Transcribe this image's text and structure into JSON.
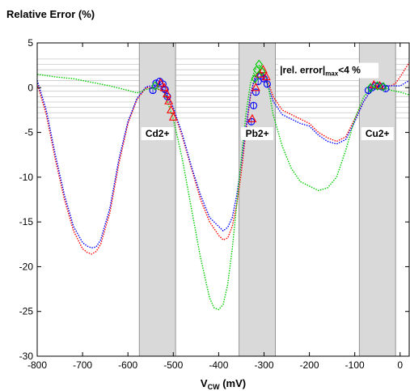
{
  "chart_data": {
    "type": "line",
    "title": "Relative Error (%)",
    "xlabel": "V",
    "xlabel_sub": "CW",
    "xlabel_unit": " (mV)",
    "xlim": [
      -800,
      20
    ],
    "ylim": [
      -30,
      5
    ],
    "xticks": [
      -800,
      -700,
      -600,
      -500,
      -400,
      -300,
      -200,
      -100,
      0
    ],
    "yticks": [
      5,
      0,
      -5,
      -10,
      -15,
      -20,
      -25,
      -30
    ],
    "grid": false,
    "tolerance_band": [
      -3.8,
      3.2
    ],
    "tolerance_label_main": "|rel. error|",
    "tolerance_label_sub": "max",
    "tolerance_label_tail": "<4 %",
    "regions": [
      {
        "label": "Cd2+",
        "x0": -575,
        "x1": -495
      },
      {
        "label": "Pb2+",
        "x0": -355,
        "x1": -275
      },
      {
        "label": "Cu2+",
        "x0": -90,
        "x1": -10
      }
    ],
    "series": [
      {
        "color": "#ff0000",
        "x": [
          -800,
          -780,
          -760,
          -740,
          -720,
          -700,
          -690,
          -680,
          -670,
          -660,
          -640,
          -620,
          -600,
          -580,
          -560,
          -540,
          -520,
          -500,
          -480,
          -460,
          -440,
          -420,
          -400,
          -390,
          -380,
          -370,
          -360,
          -350,
          -340,
          -330,
          -320,
          -310,
          -300,
          -290,
          -280,
          -260,
          -240,
          -220,
          -200,
          -180,
          -160,
          -140,
          -120,
          -100,
          -80,
          -60,
          -40,
          -20,
          -10,
          0,
          10,
          20
        ],
        "y": [
          0.5,
          -3,
          -8,
          -12.5,
          -16,
          -18,
          -18.4,
          -18.6,
          -18.3,
          -17.5,
          -14,
          -8.5,
          -4,
          -1.3,
          0,
          0,
          -0.5,
          -2.5,
          -5.5,
          -9,
          -12.5,
          -15,
          -16.5,
          -17,
          -16.8,
          -15.5,
          -13,
          -9.5,
          -5,
          -1,
          1.2,
          1.8,
          1.5,
          0.5,
          -1,
          -2.5,
          -3,
          -3.5,
          -4,
          -5,
          -5.6,
          -6,
          -5.5,
          -3.5,
          -1.5,
          0,
          0.2,
          0.2,
          0.5,
          1.2,
          2,
          2.8
        ]
      },
      {
        "color": "#0000ff",
        "x": [
          -800,
          -780,
          -760,
          -740,
          -720,
          -700,
          -690,
          -680,
          -670,
          -660,
          -640,
          -620,
          -600,
          -580,
          -560,
          -540,
          -520,
          -500,
          -480,
          -460,
          -440,
          -420,
          -400,
          -390,
          -380,
          -370,
          -360,
          -350,
          -340,
          -330,
          -320,
          -310,
          -300,
          -290,
          -280,
          -260,
          -240,
          -220,
          -200,
          -180,
          -160,
          -140,
          -120,
          -100,
          -80,
          -60,
          -40,
          -20,
          -10,
          0,
          10,
          20
        ],
        "y": [
          0.8,
          -2.5,
          -7.5,
          -12,
          -15.5,
          -17.3,
          -17.7,
          -17.9,
          -17.8,
          -17,
          -13.5,
          -8,
          -3.8,
          -1.2,
          0.1,
          0.3,
          -0.3,
          -2.2,
          -5.2,
          -8.8,
          -12,
          -14.5,
          -15.5,
          -16,
          -15.6,
          -14.5,
          -12,
          -8.5,
          -4.5,
          -0.8,
          1.2,
          1.6,
          1.2,
          0,
          -1.5,
          -3,
          -3.5,
          -4,
          -4.3,
          -5.3,
          -6,
          -6.3,
          -5.8,
          -3.8,
          -1.5,
          0,
          0.3,
          0.2,
          0.2,
          0.2,
          0.5,
          0.8
        ]
      },
      {
        "color": "#00cc00",
        "x": [
          -800,
          -760,
          -720,
          -680,
          -640,
          -600,
          -580,
          -560,
          -540,
          -520,
          -500,
          -480,
          -460,
          -440,
          -420,
          -410,
          -400,
          -390,
          -380,
          -370,
          -360,
          -350,
          -340,
          -330,
          -320,
          -310,
          -300,
          -290,
          -280,
          -260,
          -240,
          -220,
          -200,
          -180,
          -160,
          -140,
          -120,
          -100,
          -80,
          -60,
          -40,
          -20,
          0,
          20
        ],
        "y": [
          1.5,
          1.2,
          1,
          0.6,
          0.2,
          -0.3,
          -0.6,
          -0.2,
          0,
          -0.5,
          -3.5,
          -8,
          -13.5,
          -19,
          -23.5,
          -24.6,
          -24.8,
          -24.2,
          -22,
          -18,
          -13,
          -8,
          -3,
          0.5,
          2,
          2.5,
          2,
          0,
          -3,
          -6.5,
          -9,
          -10.5,
          -11,
          -11.5,
          -11.2,
          -10,
          -7,
          -3.5,
          -1,
          0,
          0.1,
          -0.3,
          -0.5,
          -0.8
        ]
      }
    ],
    "markers": [
      {
        "shape": "circle",
        "color": "#0000ff",
        "x": -545,
        "y": -0.3
      },
      {
        "shape": "circle",
        "color": "#0000ff",
        "x": -538,
        "y": 0.5
      },
      {
        "shape": "circle",
        "color": "#0000ff",
        "x": -530,
        "y": 0.7
      },
      {
        "shape": "circle",
        "color": "#0000ff",
        "x": -523,
        "y": 0.4
      },
      {
        "shape": "circle",
        "color": "#0000ff",
        "x": -518,
        "y": -0.2
      },
      {
        "shape": "circle",
        "color": "#0000ff",
        "x": -513,
        "y": -1.0
      },
      {
        "shape": "triangle",
        "color": "#ff0000",
        "x": -528,
        "y": 0.5
      },
      {
        "shape": "triangle",
        "color": "#ff0000",
        "x": -520,
        "y": 0.0
      },
      {
        "shape": "triangle",
        "color": "#ff0000",
        "x": -514,
        "y": -0.7
      },
      {
        "shape": "triangle",
        "color": "#ff0000",
        "x": -510,
        "y": -1.5
      },
      {
        "shape": "triangle",
        "color": "#ff0000",
        "x": -505,
        "y": -2.5
      },
      {
        "shape": "triangle",
        "color": "#ff0000",
        "x": -500,
        "y": -3.3
      },
      {
        "shape": "diamond",
        "color": "#00cc00",
        "x": -540,
        "y": 0.2
      },
      {
        "shape": "circle",
        "color": "#0000ff",
        "x": -328,
        "y": -3.8
      },
      {
        "shape": "circle",
        "color": "#0000ff",
        "x": -323,
        "y": -2.0
      },
      {
        "shape": "circle",
        "color": "#0000ff",
        "x": -318,
        "y": -0.5
      },
      {
        "shape": "circle",
        "color": "#0000ff",
        "x": -313,
        "y": 0.7
      },
      {
        "shape": "circle",
        "color": "#0000ff",
        "x": -307,
        "y": 1.3
      },
      {
        "shape": "circle",
        "color": "#0000ff",
        "x": -300,
        "y": 1.0
      },
      {
        "shape": "circle",
        "color": "#0000ff",
        "x": -293,
        "y": 0.4
      },
      {
        "shape": "triangle",
        "color": "#ff0000",
        "x": -326,
        "y": -3.5
      },
      {
        "shape": "triangle",
        "color": "#ff0000",
        "x": -318,
        "y": 0.0
      },
      {
        "shape": "triangle",
        "color": "#ff0000",
        "x": -310,
        "y": 1.5
      },
      {
        "shape": "triangle",
        "color": "#ff0000",
        "x": -302,
        "y": 2.0
      },
      {
        "shape": "triangle",
        "color": "#ff0000",
        "x": -295,
        "y": 1.2
      },
      {
        "shape": "diamond",
        "color": "#00cc00",
        "x": -320,
        "y": 1.0
      },
      {
        "shape": "diamond",
        "color": "#00cc00",
        "x": -316,
        "y": 2.0
      },
      {
        "shape": "diamond",
        "color": "#00cc00",
        "x": -311,
        "y": 2.6
      },
      {
        "shape": "diamond",
        "color": "#00cc00",
        "x": -305,
        "y": 1.8
      },
      {
        "shape": "circle",
        "color": "#0000ff",
        "x": -70,
        "y": -0.3
      },
      {
        "shape": "circle",
        "color": "#0000ff",
        "x": -62,
        "y": 0.0
      },
      {
        "shape": "circle",
        "color": "#0000ff",
        "x": -55,
        "y": 0.2
      },
      {
        "shape": "circle",
        "color": "#0000ff",
        "x": -47,
        "y": 0.2
      },
      {
        "shape": "circle",
        "color": "#0000ff",
        "x": -40,
        "y": 0.1
      },
      {
        "shape": "circle",
        "color": "#0000ff",
        "x": -32,
        "y": -0.1
      },
      {
        "shape": "triangle",
        "color": "#ff0000",
        "x": -58,
        "y": 0.3
      },
      {
        "shape": "triangle",
        "color": "#ff0000",
        "x": -45,
        "y": 0.2
      },
      {
        "shape": "diamond",
        "color": "#00cc00",
        "x": -65,
        "y": 0.0
      },
      {
        "shape": "diamond",
        "color": "#00cc00",
        "x": -50,
        "y": 0.2
      },
      {
        "shape": "diamond",
        "color": "#00cc00",
        "x": -37,
        "y": 0.1
      }
    ]
  }
}
